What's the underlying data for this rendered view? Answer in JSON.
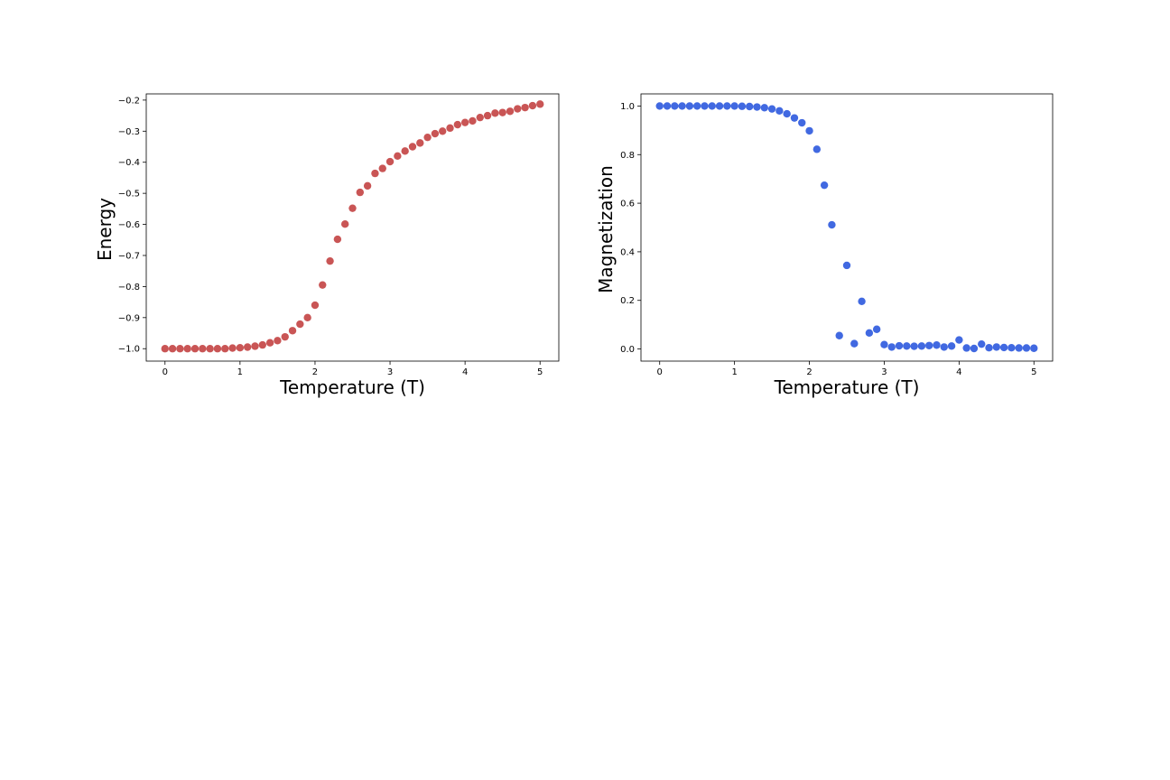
{
  "chart_data": [
    {
      "type": "scatter",
      "xlabel": "Temperature (T)",
      "ylabel": "Energy",
      "xlim": [
        -0.25,
        5.25
      ],
      "ylim": [
        -1.04,
        -0.18
      ],
      "x_ticks": [
        0,
        1,
        2,
        3,
        4,
        5
      ],
      "y_ticks": [
        -1.0,
        -0.9,
        -0.8,
        -0.7,
        -0.6,
        -0.5,
        -0.4,
        -0.3,
        -0.2
      ],
      "x_tick_labels": [
        "0",
        "1",
        "2",
        "3",
        "4",
        "5"
      ],
      "y_tick_labels": [
        "−1.0",
        "−0.9",
        "−0.8",
        "−0.7",
        "−0.6",
        "−0.5",
        "−0.4",
        "−0.3",
        "−0.2"
      ],
      "grid": false,
      "color": "#c95555",
      "series": [
        {
          "x": [
            0.0,
            0.1,
            0.2,
            0.3,
            0.4,
            0.5,
            0.6,
            0.7,
            0.8,
            0.9,
            1.0,
            1.1,
            1.2,
            1.3,
            1.4,
            1.5,
            1.6,
            1.7,
            1.8,
            1.9,
            2.0,
            2.1,
            2.2,
            2.3,
            2.4,
            2.5,
            2.6,
            2.7,
            2.8,
            2.9,
            3.0,
            3.1,
            3.2,
            3.3,
            3.4,
            3.5,
            3.6,
            3.7,
            3.8,
            3.9,
            4.0,
            4.1,
            4.2,
            4.3,
            4.4,
            4.5,
            4.6,
            4.7,
            4.8,
            4.9,
            5.0
          ],
          "y": [
            -1.0,
            -1.0,
            -1.0,
            -1.0,
            -1.0,
            -1.0,
            -1.0,
            -1.0,
            -1.0,
            -0.998,
            -0.997,
            -0.995,
            -0.992,
            -0.988,
            -0.981,
            -0.974,
            -0.962,
            -0.942,
            -0.921,
            -0.9,
            -0.86,
            -0.795,
            -0.718,
            -0.648,
            -0.599,
            -0.548,
            -0.497,
            -0.476,
            -0.436,
            -0.42,
            -0.398,
            -0.38,
            -0.364,
            -0.35,
            -0.338,
            -0.32,
            -0.308,
            -0.3,
            -0.29,
            -0.279,
            -0.272,
            -0.267,
            -0.256,
            -0.25,
            -0.242,
            -0.24,
            -0.236,
            -0.228,
            -0.224,
            -0.218,
            -0.213
          ]
        }
      ]
    },
    {
      "type": "scatter",
      "xlabel": "Temperature (T)",
      "ylabel": "Magnetization",
      "xlim": [
        -0.25,
        5.25
      ],
      "ylim": [
        -0.05,
        1.05
      ],
      "x_ticks": [
        0,
        1,
        2,
        3,
        4,
        5
      ],
      "y_ticks": [
        0.0,
        0.2,
        0.4,
        0.6,
        0.8,
        1.0
      ],
      "x_tick_labels": [
        "0",
        "1",
        "2",
        "3",
        "4",
        "5"
      ],
      "y_tick_labels": [
        "0.0",
        "0.2",
        "0.4",
        "0.6",
        "0.8",
        "1.0"
      ],
      "grid": false,
      "color": "#4169e1",
      "series": [
        {
          "x": [
            0.0,
            0.1,
            0.2,
            0.3,
            0.4,
            0.5,
            0.6,
            0.7,
            0.8,
            0.9,
            1.0,
            1.1,
            1.2,
            1.3,
            1.4,
            1.5,
            1.6,
            1.7,
            1.8,
            1.9,
            2.0,
            2.1,
            2.2,
            2.3,
            2.4,
            2.5,
            2.6,
            2.7,
            2.8,
            2.9,
            3.0,
            3.1,
            3.2,
            3.3,
            3.4,
            3.5,
            3.6,
            3.7,
            3.8,
            3.9,
            4.0,
            4.1,
            4.2,
            4.3,
            4.4,
            4.5,
            4.6,
            4.7,
            4.8,
            4.9,
            5.0
          ],
          "y": [
            1.0,
            1.0,
            1.0,
            1.0,
            1.0,
            1.0,
            1.0,
            1.0,
            1.0,
            1.0,
            1.0,
            0.999,
            0.998,
            0.996,
            0.993,
            0.988,
            0.98,
            0.968,
            0.951,
            0.931,
            0.898,
            0.822,
            0.674,
            0.511,
            0.055,
            0.344,
            0.022,
            0.196,
            0.066,
            0.081,
            0.018,
            0.008,
            0.013,
            0.012,
            0.011,
            0.012,
            0.014,
            0.016,
            0.008,
            0.012,
            0.037,
            0.004,
            0.002,
            0.02,
            0.005,
            0.008,
            0.006,
            0.005,
            0.004,
            0.004,
            0.003
          ]
        }
      ]
    }
  ]
}
